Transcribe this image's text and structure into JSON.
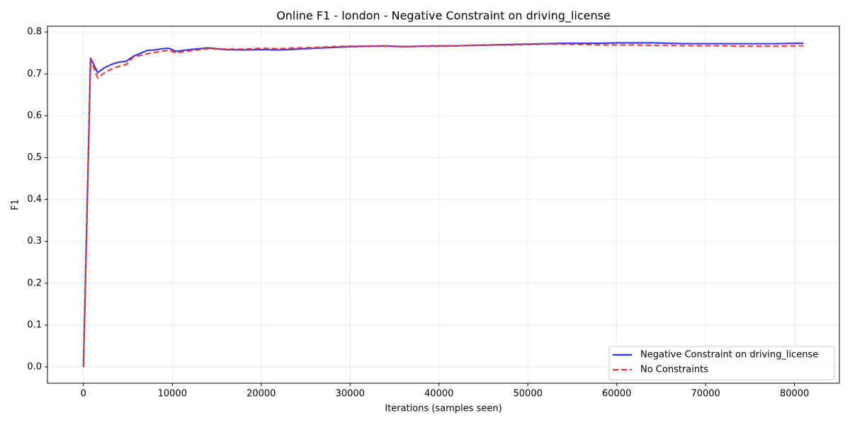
{
  "chart_data": {
    "type": "line",
    "title": "Online F1 - london - Negative Constraint on driving_license",
    "x_label": "Iterations (samples seen)",
    "y_label": "F1",
    "x": [
      0,
      800,
      1600,
      2400,
      3200,
      4000,
      4800,
      5600,
      6400,
      7200,
      8000,
      8800,
      9600,
      10400,
      12000,
      14000,
      16000,
      18000,
      20000,
      22000,
      24000,
      26000,
      28000,
      30000,
      32000,
      34000,
      36000,
      38000,
      40000,
      42000,
      44000,
      46000,
      48000,
      50000,
      52000,
      54000,
      56000,
      58000,
      60000,
      62000,
      64000,
      66000,
      68000,
      70000,
      72000,
      74000,
      76000,
      78000,
      80000,
      81000
    ],
    "series": [
      {
        "name": "Negative Constraint on driving_license",
        "color": "#2e2ef0",
        "linestyle": "solid",
        "values": [
          0,
          0.738,
          0.703,
          0.715,
          0.723,
          0.728,
          0.73,
          0.742,
          0.749,
          0.756,
          0.757,
          0.76,
          0.761,
          0.754,
          0.758,
          0.762,
          0.758,
          0.757,
          0.758,
          0.757,
          0.759,
          0.761,
          0.763,
          0.765,
          0.766,
          0.767,
          0.765,
          0.766,
          0.767,
          0.767,
          0.768,
          0.769,
          0.77,
          0.771,
          0.772,
          0.773,
          0.773,
          0.773,
          0.774,
          0.774,
          0.774,
          0.773,
          0.772,
          0.772,
          0.772,
          0.772,
          0.772,
          0.772,
          0.773,
          0.773
        ]
      },
      {
        "name": "No Constraints",
        "color": "#f03434",
        "linestyle": "dashed",
        "values": [
          0,
          0.735,
          0.69,
          0.703,
          0.712,
          0.718,
          0.722,
          0.74,
          0.744,
          0.748,
          0.751,
          0.754,
          0.756,
          0.75,
          0.755,
          0.76,
          0.759,
          0.759,
          0.761,
          0.76,
          0.762,
          0.763,
          0.765,
          0.766,
          0.766,
          0.766,
          0.765,
          0.766,
          0.766,
          0.767,
          0.768,
          0.769,
          0.769,
          0.77,
          0.771,
          0.771,
          0.77,
          0.769,
          0.769,
          0.769,
          0.768,
          0.768,
          0.767,
          0.767,
          0.767,
          0.766,
          0.766,
          0.766,
          0.767,
          0.767
        ]
      }
    ],
    "xlim": [
      -4050,
      85050
    ],
    "ylim": [
      -0.0388,
      0.8138
    ],
    "xticks": [
      0,
      10000,
      20000,
      30000,
      40000,
      50000,
      60000,
      70000,
      80000
    ],
    "yticks": [
      {
        "value": 0,
        "label": "0.0"
      },
      0.1,
      0.2,
      0.3,
      0.4,
      0.5,
      0.6,
      0.7,
      0.8
    ],
    "grid": true,
    "legend": "lower right"
  }
}
